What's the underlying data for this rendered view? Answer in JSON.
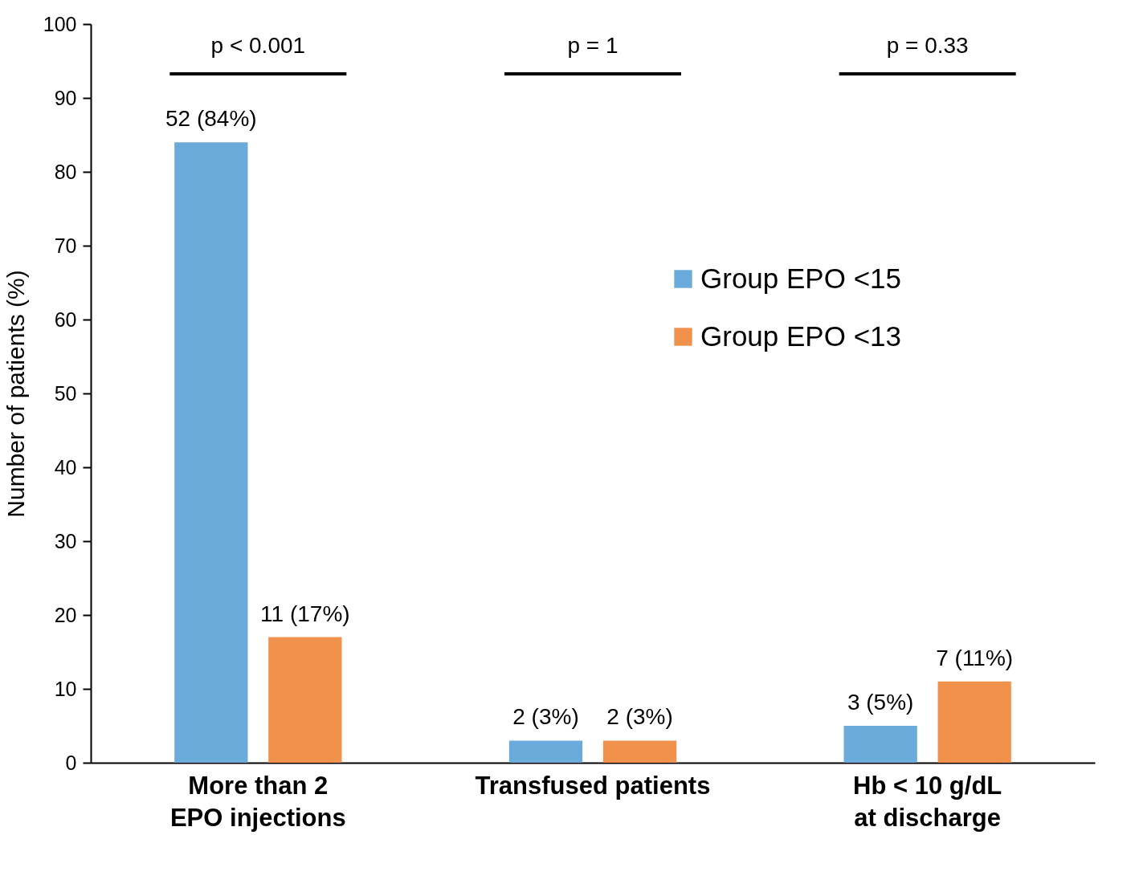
{
  "chart_data": {
    "type": "bar",
    "ylabel": "Number of patients (%)",
    "categories": [
      "More than 2 EPO injections",
      "Transfused patients",
      "Hb < 10 g/dL at discharge"
    ],
    "series": [
      {
        "name": "Group EPO <15",
        "color": "#6aabdb",
        "values": [
          84,
          3,
          5
        ],
        "value_labels": [
          "52 (84%)",
          "2 (3%)",
          "3 (5%)"
        ]
      },
      {
        "name": "Group EPO <13",
        "color": "#f0924c",
        "values": [
          17,
          3,
          11
        ],
        "value_labels": [
          "11 (17%)",
          "2 (3%)",
          "7 (11%)"
        ]
      }
    ],
    "ylim": [
      0,
      100
    ],
    "yticks": [
      0,
      10,
      20,
      30,
      40,
      50,
      60,
      70,
      80,
      90,
      100
    ],
    "grid": false,
    "legend": "right",
    "annotations": [
      "p < 0.001",
      "p = 1",
      "p = 0.33"
    ]
  }
}
